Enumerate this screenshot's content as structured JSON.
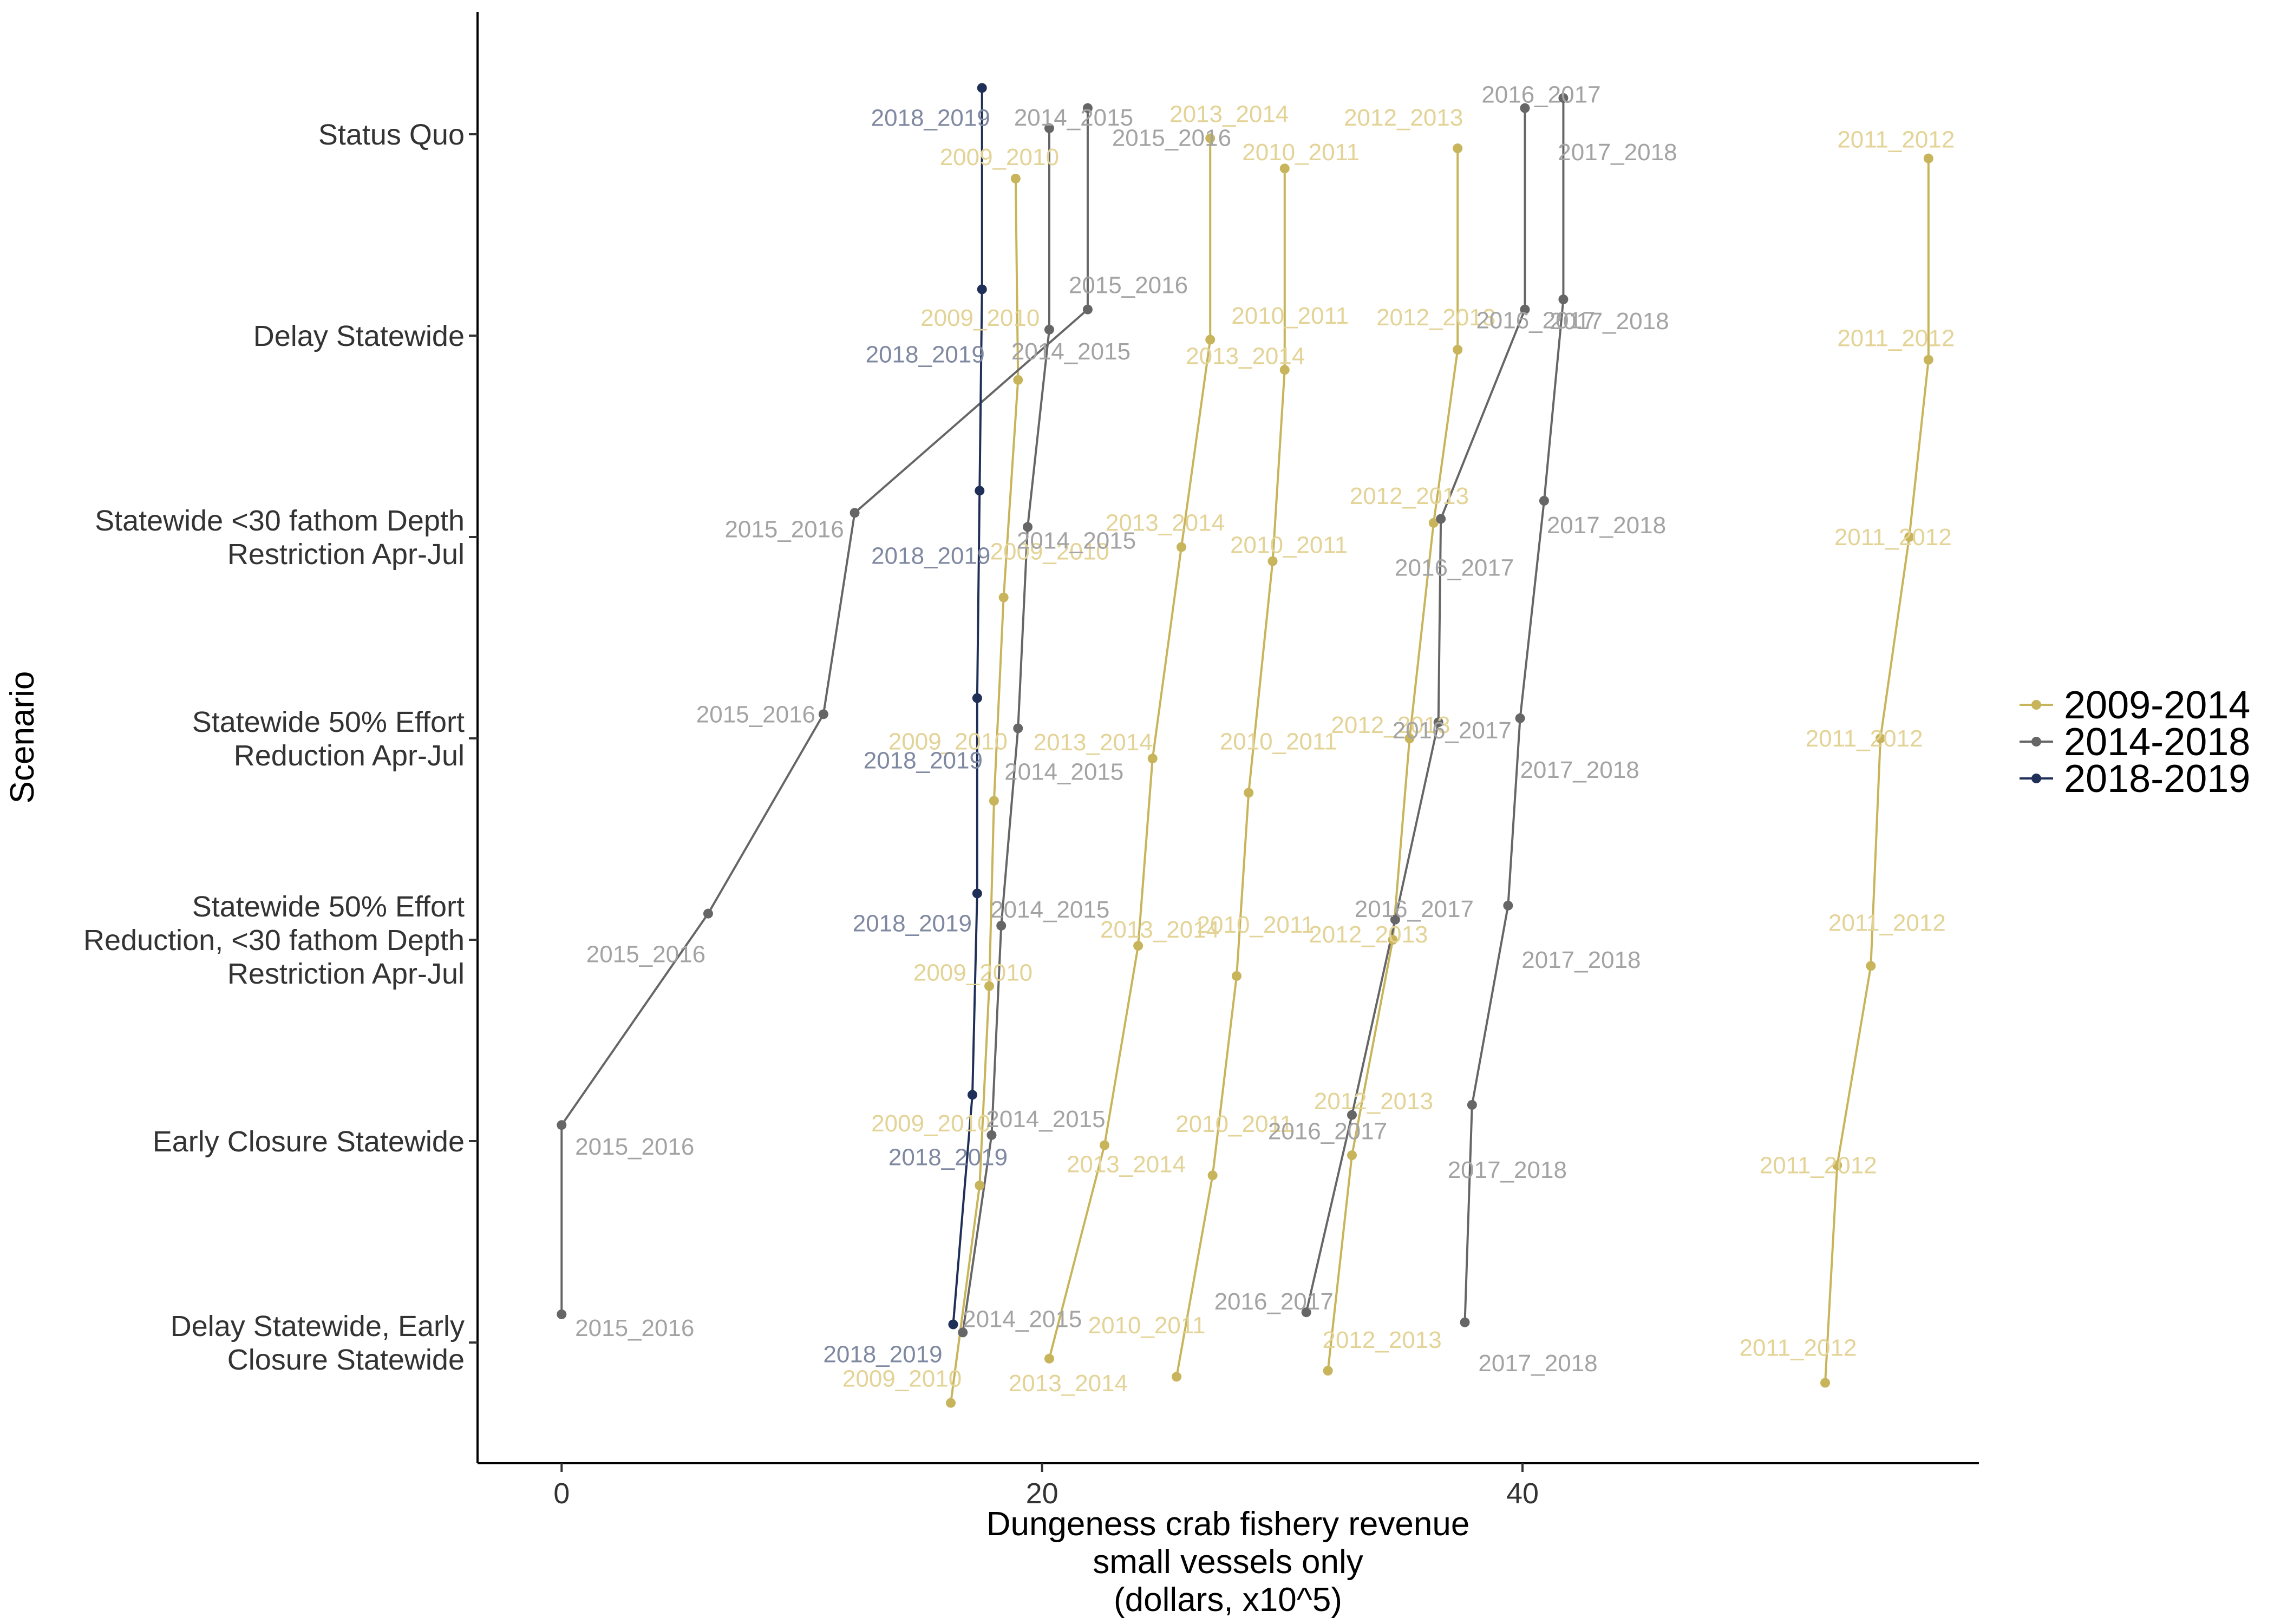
{
  "chart_data": {
    "type": "line",
    "xlabel": [
      "Dungeness crab fishery revenue",
      "small vessels only",
      "(dollars, x10^5)"
    ],
    "ylabel": "Scenario",
    "xlim": [
      -3.5,
      59
    ],
    "x_ticks": [
      0,
      20,
      40
    ],
    "x_tick_labels": [
      "0",
      "20",
      "40"
    ],
    "grid": false,
    "legend_position": "right",
    "scenarios": [
      [
        "Status Quo"
      ],
      [
        "Delay Statewide"
      ],
      [
        "Statewide <30 fathom Depth",
        "Restriction Apr-Jul"
      ],
      [
        "Statewide 50% Effort",
        "Reduction Apr-Jul"
      ],
      [
        "Statewide 50% Effort",
        "Reduction, <30 fathom Depth",
        "Restriction Apr-Jul"
      ],
      [
        "Early Closure Statewide"
      ],
      [
        "Delay Statewide, Early",
        "Closure Statewide"
      ]
    ],
    "series": [
      {
        "name": "2009_2010",
        "group": "2009-2014",
        "values": [
          18.9,
          19.0,
          18.4,
          18.0,
          17.8,
          17.4,
          16.2
        ]
      },
      {
        "name": "2010_2011",
        "group": "2009-2014",
        "values": [
          30.1,
          30.1,
          29.6,
          28.6,
          28.1,
          27.1,
          25.6
        ]
      },
      {
        "name": "2011_2012",
        "group": "2009-2014",
        "values": [
          56.9,
          56.9,
          56.1,
          54.9,
          54.5,
          53.1,
          52.6
        ]
      },
      {
        "name": "2012_2013",
        "group": "2009-2014",
        "values": [
          37.3,
          37.3,
          36.3,
          35.3,
          34.6,
          32.9,
          31.9
        ]
      },
      {
        "name": "2013_2014",
        "group": "2009-2014",
        "values": [
          27.0,
          27.0,
          25.8,
          24.6,
          24.0,
          22.6,
          20.3
        ]
      },
      {
        "name": "2014_2015",
        "group": "2014-2018",
        "values": [
          20.3,
          20.3,
          19.4,
          19.0,
          18.3,
          17.9,
          16.7
        ]
      },
      {
        "name": "2015_2016",
        "group": "2014-2018",
        "values": [
          21.9,
          21.9,
          12.2,
          10.9,
          6.1,
          0.0,
          0.0
        ]
      },
      {
        "name": "2016_2017",
        "group": "2014-2018",
        "values": [
          40.1,
          40.1,
          36.6,
          36.5,
          34.7,
          32.9,
          31.0
        ]
      },
      {
        "name": "2017_2018",
        "group": "2014-2018",
        "values": [
          41.7,
          41.7,
          40.9,
          39.9,
          39.4,
          37.9,
          37.6
        ]
      },
      {
        "name": "2018_2019",
        "group": "2018-2019",
        "values": [
          17.5,
          17.5,
          17.4,
          17.3,
          17.3,
          17.1,
          16.3
        ]
      }
    ],
    "point_offsets": {
      "2009_2010": [
        0.22,
        0.22,
        0.3,
        0.31,
        0.23,
        0.22,
        0.3
      ],
      "2010_2011": [
        0.17,
        0.17,
        0.12,
        0.27,
        0.18,
        0.17,
        0.17
      ],
      "2011_2012": [
        0.12,
        0.12,
        0.0,
        0.0,
        0.13,
        0.12,
        0.2
      ],
      "2012_2013": [
        0.07,
        0.07,
        -0.07,
        0.0,
        0.0,
        0.07,
        0.14
      ],
      "2013_2014": [
        0.02,
        0.02,
        0.05,
        0.1,
        0.03,
        0.02,
        0.08
      ],
      "2014_2015": [
        -0.03,
        -0.03,
        -0.05,
        -0.05,
        -0.07,
        -0.03,
        -0.05
      ],
      "2015_2016": [
        -0.13,
        -0.13,
        -0.12,
        -0.12,
        -0.13,
        -0.08,
        -0.14
      ],
      "2016_2017": [
        -0.13,
        -0.13,
        -0.09,
        -0.08,
        -0.1,
        -0.13,
        -0.15
      ],
      "2017_2018": [
        -0.18,
        -0.18,
        -0.18,
        -0.1,
        -0.17,
        -0.18,
        -0.1
      ],
      "2018_2019": [
        -0.23,
        -0.23,
        -0.23,
        -0.2,
        -0.23,
        -0.23,
        -0.09
      ]
    },
    "legend": [
      {
        "label": "2009-2014",
        "color": "#c8b45a"
      },
      {
        "label": "2014-2018",
        "color": "#666666"
      },
      {
        "label": "2018-2019",
        "color": "#1f2f57"
      }
    ],
    "label_colors": {
      "2009-2014": "#e3d396",
      "2014-2018": "#a3a3a3",
      "2018-2019": "#7f88a1"
    }
  }
}
